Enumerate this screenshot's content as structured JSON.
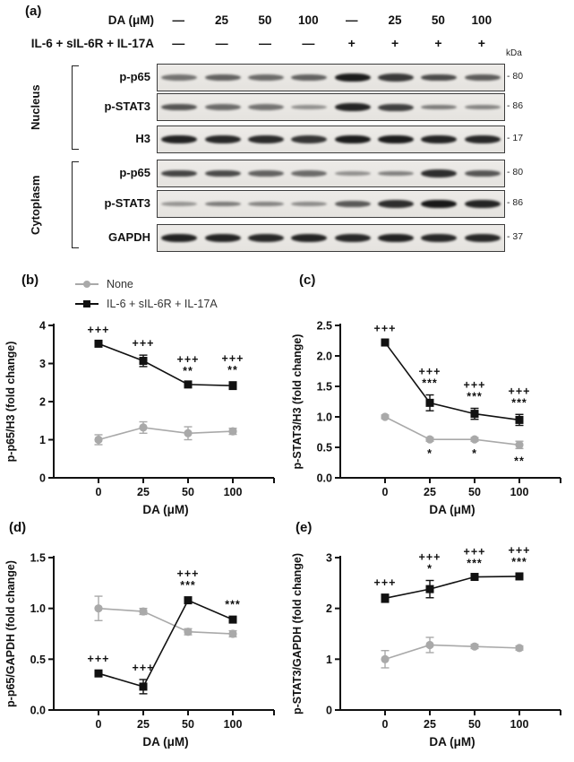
{
  "figure": {
    "panel_a": {
      "label": "(a)",
      "da_row": {
        "label": "DA (μM)",
        "values": [
          "—",
          "25",
          "50",
          "100",
          "—",
          "25",
          "50",
          "100"
        ]
      },
      "stim_row": {
        "label": "IL-6 + sIL-6R + IL-17A",
        "values": [
          "—",
          "—",
          "—",
          "—",
          "+",
          "+",
          "+",
          "+"
        ]
      },
      "kda_label": "kDa",
      "groups": [
        {
          "name": "Nucleus",
          "rows": [
            {
              "protein": "p-p65",
              "kda": "80",
              "band_intensities": [
                0.45,
                0.55,
                0.5,
                0.55,
                0.95,
                0.78,
                0.68,
                0.58
              ]
            },
            {
              "protein": "p-STAT3",
              "kda": "86",
              "band_intensities": [
                0.62,
                0.5,
                0.45,
                0.28,
                0.9,
                0.75,
                0.4,
                0.35
              ]
            },
            {
              "protein": "H3",
              "kda": "17",
              "band_intensities": [
                0.92,
                0.88,
                0.86,
                0.8,
                0.95,
                0.95,
                0.9,
                0.88
              ]
            }
          ]
        },
        {
          "name": "Cytoplasm",
          "rows": [
            {
              "protein": "p-p65",
              "kda": "80",
              "band_intensities": [
                0.72,
                0.68,
                0.55,
                0.5,
                0.28,
                0.38,
                0.85,
                0.62
              ]
            },
            {
              "protein": "p-STAT3",
              "kda": "86",
              "band_intensities": [
                0.25,
                0.4,
                0.35,
                0.3,
                0.6,
                0.85,
                0.97,
                0.9
              ]
            },
            {
              "protein": "GAPDH",
              "kda": "37",
              "band_intensities": [
                0.92,
                0.9,
                0.88,
                0.9,
                0.88,
                0.92,
                0.88,
                0.88
              ]
            }
          ]
        }
      ]
    },
    "legend": {
      "items": [
        {
          "label": "None",
          "color": "#a9a9a9",
          "marker": "circle"
        },
        {
          "label": "IL-6 + sIL-6R + IL-17A",
          "color": "#111111",
          "marker": "square"
        }
      ]
    }
  },
  "colors": {
    "gray_series": "#a9a9a9",
    "black_series": "#111111",
    "axis": "#111111"
  },
  "chart_data": [
    {
      "panel": "(b)",
      "type": "line",
      "x_categories": [
        "0",
        "25",
        "50",
        "100"
      ],
      "xlabel": "DA (μM)",
      "ylabel": "p-p65/H3 (fold change)",
      "ylim": [
        0,
        4
      ],
      "ytick_values": [
        0,
        1,
        2,
        3,
        4
      ],
      "ytick_labels": [
        "0",
        "1",
        "2",
        "3",
        "4"
      ],
      "grid": false,
      "legend_position": "top-left",
      "series": [
        {
          "name": "None",
          "color": "#a9a9a9",
          "marker": "circle",
          "values": [
            1.0,
            1.32,
            1.17,
            1.22
          ],
          "errors": [
            0.13,
            0.15,
            0.17,
            0.08
          ],
          "annotations": [
            [],
            [],
            [],
            []
          ],
          "annotation_side": "below"
        },
        {
          "name": "IL-6 + sIL-6R + IL-17A",
          "color": "#111111",
          "marker": "square",
          "values": [
            3.52,
            3.07,
            2.45,
            2.42
          ],
          "errors": [
            0.06,
            0.15,
            0.05,
            0.1
          ],
          "annotations": [
            [
              "+++"
            ],
            [
              "+++"
            ],
            [
              "+++",
              "**"
            ],
            [
              "+++",
              "**"
            ]
          ],
          "annotation_side": "above"
        }
      ]
    },
    {
      "panel": "(c)",
      "type": "line",
      "x_categories": [
        "0",
        "25",
        "50",
        "100"
      ],
      "xlabel": "DA (μM)",
      "ylabel": "p-STAT3/H3 (fold change)",
      "ylim": [
        0,
        2.5
      ],
      "ytick_values": [
        0,
        0.5,
        1.0,
        1.5,
        2.0,
        2.5
      ],
      "ytick_labels": [
        "0.0",
        "0.5",
        "1.0",
        "1.5",
        "2.0",
        "2.5"
      ],
      "grid": false,
      "series": [
        {
          "name": "None",
          "color": "#a9a9a9",
          "marker": "circle",
          "values": [
            1.0,
            0.63,
            0.63,
            0.54
          ],
          "errors": [
            0.03,
            0.03,
            0.03,
            0.06
          ],
          "annotations": [
            [],
            [
              "*"
            ],
            [
              "*"
            ],
            [
              "**"
            ]
          ],
          "annotation_side": "below"
        },
        {
          "name": "IL-6 + sIL-6R + IL-17A",
          "color": "#111111",
          "marker": "square",
          "values": [
            2.22,
            1.23,
            1.05,
            0.95
          ],
          "errors": [
            0.04,
            0.13,
            0.09,
            0.09
          ],
          "annotations": [
            [
              "+++"
            ],
            [
              "+++",
              "***"
            ],
            [
              "+++",
              "***"
            ],
            [
              "+++",
              "***"
            ]
          ],
          "annotation_side": "above"
        }
      ]
    },
    {
      "panel": "(d)",
      "type": "line",
      "x_categories": [
        "0",
        "25",
        "50",
        "100"
      ],
      "xlabel": "DA (μM)",
      "ylabel": "p-p65/GAPDH (fold change)",
      "ylim": [
        0,
        1.5
      ],
      "ytick_values": [
        0,
        0.5,
        1.0,
        1.5
      ],
      "ytick_labels": [
        "0.0",
        "0.5",
        "1.0",
        "1.5"
      ],
      "grid": false,
      "series": [
        {
          "name": "None",
          "color": "#a9a9a9",
          "marker": "circle",
          "values": [
            1.0,
            0.97,
            0.77,
            0.75
          ],
          "errors": [
            0.12,
            0.03,
            0.03,
            0.03
          ],
          "annotations": [
            [],
            [],
            [],
            []
          ],
          "annotation_side": "below"
        },
        {
          "name": "IL-6 + sIL-6R + IL-17A",
          "color": "#111111",
          "marker": "square",
          "values": [
            0.36,
            0.23,
            1.08,
            0.89
          ],
          "errors": [
            0.03,
            0.07,
            0.03,
            0.03
          ],
          "annotations": [
            [
              "+++"
            ],
            [
              "+++"
            ],
            [
              "+++",
              "***"
            ],
            [
              "***"
            ]
          ],
          "annotation_side": "above"
        }
      ]
    },
    {
      "panel": "(e)",
      "type": "line",
      "x_categories": [
        "0",
        "25",
        "50",
        "100"
      ],
      "xlabel": "DA (μM)",
      "ylabel": "p-STAT3/GAPDH (fold change)",
      "ylim": [
        0,
        3
      ],
      "ytick_values": [
        0,
        1,
        2,
        3
      ],
      "ytick_labels": [
        "0",
        "1",
        "2",
        "3"
      ],
      "grid": false,
      "series": [
        {
          "name": "None",
          "color": "#a9a9a9",
          "marker": "circle",
          "values": [
            1.0,
            1.28,
            1.25,
            1.22
          ],
          "errors": [
            0.17,
            0.15,
            0.04,
            0.04
          ],
          "annotations": [
            [],
            [],
            [],
            []
          ],
          "annotation_side": "below"
        },
        {
          "name": "IL-6 + sIL-6R + IL-17A",
          "color": "#111111",
          "marker": "square",
          "values": [
            2.2,
            2.38,
            2.62,
            2.63
          ],
          "errors": [
            0.08,
            0.17,
            0.04,
            0.05
          ],
          "annotations": [
            [
              "+++"
            ],
            [
              "+++",
              "*"
            ],
            [
              "+++",
              "***"
            ],
            [
              "+++",
              "***"
            ]
          ],
          "annotation_side": "above"
        }
      ]
    }
  ]
}
